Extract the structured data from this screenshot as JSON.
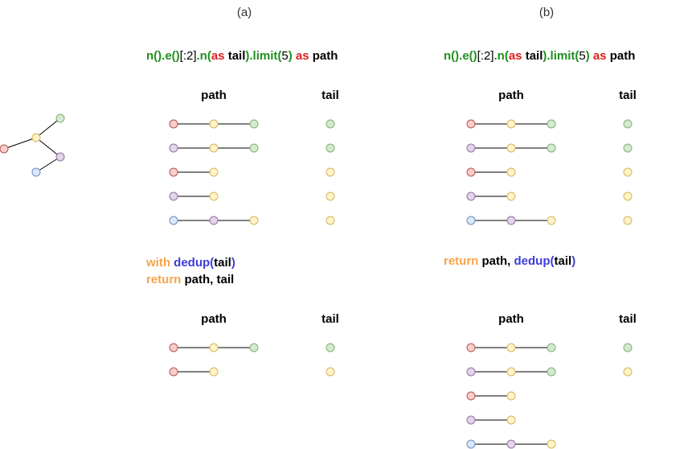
{
  "colors": {
    "red": "#f8cecc",
    "red_stroke": "#b85450",
    "yellow": "#fff2cc",
    "yellow_stroke": "#d6b656",
    "green": "#d5e8d4",
    "green_stroke": "#82b366",
    "purple": "#e1d5e7",
    "purple_stroke": "#9673a6",
    "blue": "#dae8fc",
    "blue_stroke": "#6c8ebf",
    "code_green": "#1f8f1f",
    "code_red": "#e02020",
    "code_orange": "#f5a54a",
    "code_blue": "#3d3ddb",
    "code_black": "#000000"
  },
  "labels": {
    "panel_a": "(a)",
    "panel_b": "(b)"
  },
  "query": [
    {
      "text": "n().e()",
      "color": "code_green"
    },
    {
      "text": "[:2]",
      "color": "code_black",
      "weight": "normal"
    },
    {
      "text": ".n(",
      "color": "code_green"
    },
    {
      "text": "as",
      "color": "code_red"
    },
    {
      "text": " tail",
      "color": "code_black"
    },
    {
      "text": ").limit(",
      "color": "code_green"
    },
    {
      "text": "5",
      "color": "code_black",
      "weight": "normal"
    },
    {
      "text": ")",
      "color": "code_green"
    },
    {
      "text": " as",
      "color": "code_red"
    },
    {
      "text": " path",
      "color": "code_black"
    }
  ],
  "code_a_line1": [
    {
      "text": "with",
      "color": "code_orange"
    },
    {
      "text": " dedup(",
      "color": "code_blue"
    },
    {
      "text": "tail",
      "color": "code_black"
    },
    {
      "text": ")",
      "color": "code_blue"
    }
  ],
  "code_a_line2": [
    {
      "text": "return",
      "color": "code_orange"
    },
    {
      "text": " path, tail",
      "color": "code_black"
    }
  ],
  "code_b_line1": [
    {
      "text": "return",
      "color": "code_orange"
    },
    {
      "text": " path, ",
      "color": "code_black"
    },
    {
      "text": "dedup(",
      "color": "code_blue"
    },
    {
      "text": "tail",
      "color": "code_black"
    },
    {
      "text": ")",
      "color": "code_blue"
    }
  ],
  "headers": {
    "path": "path",
    "tail": "tail"
  },
  "graph": {
    "nodes": [
      {
        "id": "r",
        "color": "red"
      },
      {
        "id": "y",
        "color": "yellow"
      },
      {
        "id": "g",
        "color": "green"
      },
      {
        "id": "p",
        "color": "purple"
      },
      {
        "id": "b",
        "color": "blue"
      }
    ],
    "edges": [
      [
        "r",
        "y"
      ],
      [
        "y",
        "g"
      ],
      [
        "y",
        "p"
      ],
      [
        "p",
        "b"
      ]
    ]
  },
  "tables": {
    "top": [
      {
        "path": [
          "red",
          "yellow",
          "green"
        ],
        "tail": "green"
      },
      {
        "path": [
          "purple",
          "yellow",
          "green"
        ],
        "tail": "green"
      },
      {
        "path": [
          "red",
          "yellow"
        ],
        "tail": "yellow"
      },
      {
        "path": [
          "purple",
          "yellow"
        ],
        "tail": "yellow"
      },
      {
        "path": [
          "blue",
          "purple",
          "yellow"
        ],
        "tail": "yellow"
      }
    ],
    "bottom_a": [
      {
        "path": [
          "red",
          "yellow",
          "green"
        ],
        "tail": "green"
      },
      {
        "path": [
          "red",
          "yellow"
        ],
        "tail": "yellow"
      }
    ],
    "bottom_b": [
      {
        "path": [
          "red",
          "yellow",
          "green"
        ],
        "tail": "green"
      },
      {
        "path": [
          "purple",
          "yellow",
          "green"
        ],
        "tail": "yellow"
      },
      {
        "path": [
          "red",
          "yellow"
        ],
        "tail": null
      },
      {
        "path": [
          "purple",
          "yellow"
        ],
        "tail": null
      },
      {
        "path": [
          "blue",
          "purple",
          "yellow"
        ],
        "tail": null
      }
    ]
  }
}
